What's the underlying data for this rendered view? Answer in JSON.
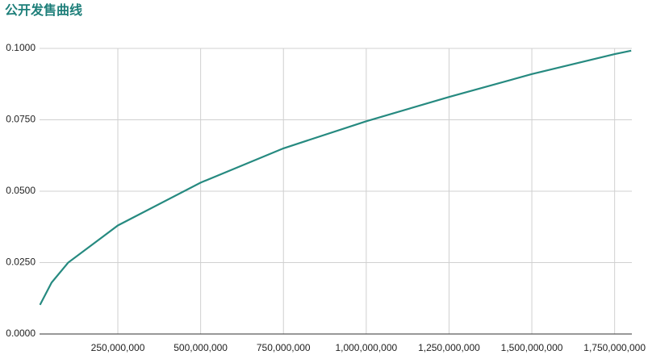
{
  "chart_data": {
    "type": "line",
    "title": "公开发售曲线",
    "x": [
      15000000,
      50000000,
      100000000,
      250000000,
      500000000,
      750000000,
      1000000000,
      1250000000,
      1500000000,
      1750000000,
      1800000000
    ],
    "series": [
      {
        "name": "公开发售曲线",
        "color": "#268a80",
        "values": [
          0.0102,
          0.018,
          0.025,
          0.038,
          0.053,
          0.065,
          0.0745,
          0.083,
          0.091,
          0.098,
          0.0992
        ]
      }
    ],
    "xlim": [
      13600000,
      1802000000
    ],
    "ylim": [
      0,
      0.1
    ],
    "xticks": [
      {
        "value": 250000000,
        "label": "250,000,000"
      },
      {
        "value": 500000000,
        "label": "500,000,000"
      },
      {
        "value": 750000000,
        "label": "750,000,000"
      },
      {
        "value": 1000000000,
        "label": "1,000,000,000"
      },
      {
        "value": 1250000000,
        "label": "1,250,000,000"
      },
      {
        "value": 1500000000,
        "label": "1,500,000,000"
      },
      {
        "value": 1750000000,
        "label": "1,750,000,000"
      }
    ],
    "yticks": [
      {
        "value": 0,
        "label": "0.0000"
      },
      {
        "value": 0.025,
        "label": "0.0250"
      },
      {
        "value": 0.05,
        "label": "0.0500"
      },
      {
        "value": 0.075,
        "label": "0.0750"
      },
      {
        "value": 0.1,
        "label": "0.1000"
      }
    ],
    "grid": true
  }
}
